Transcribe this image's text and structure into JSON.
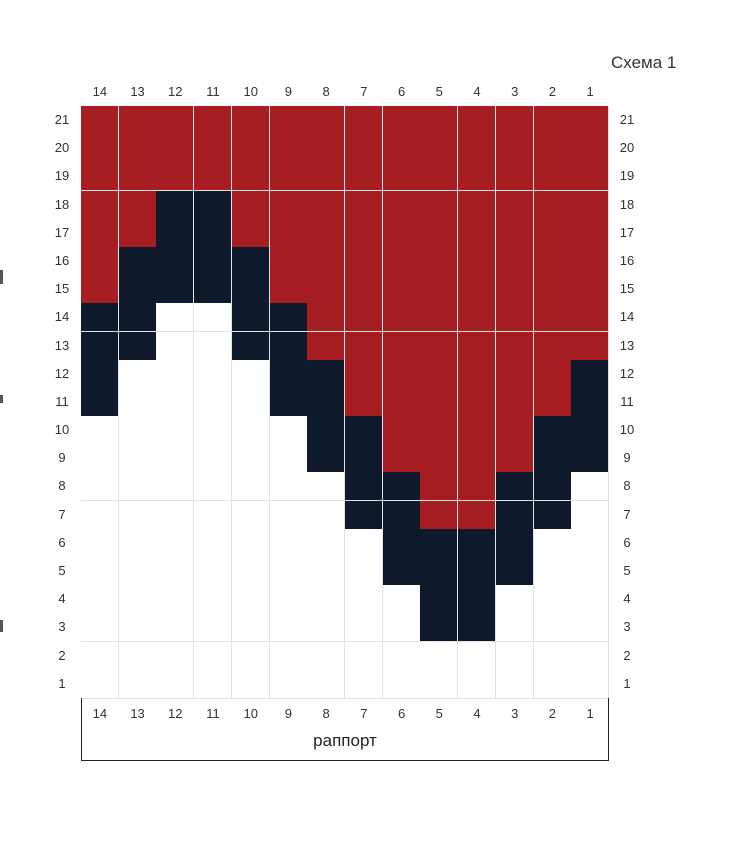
{
  "title": "Схема 1",
  "bottom_label": "раппорт",
  "column_labels": [
    "14",
    "13",
    "12",
    "11",
    "10",
    "9",
    "8",
    "7",
    "6",
    "5",
    "4",
    "3",
    "2",
    "1"
  ],
  "row_labels": [
    "21",
    "20",
    "19",
    "18",
    "17",
    "16",
    "15",
    "14",
    "13",
    "12",
    "11",
    "10",
    "9",
    "8",
    "7",
    "6",
    "5",
    "4",
    "3",
    "2",
    "1"
  ],
  "colors": {
    "R": "#a61e22",
    "B": "#0e1a2b",
    "W": "#ffffff",
    "grid_line": "#dfe3e8"
  },
  "legend_codes": {
    "R": "red",
    "B": "dark navy",
    "W": "white"
  },
  "pattern_rows_top_to_bottom": [
    "RRRRRRRRRRRRRR",
    "RRRRRRRRRRRRRR",
    "RRRRRRRRRRRRRR",
    "RRBBRRRRRRRRRR",
    "RRBBRRRRRRRRRR",
    "RBBBBRRRRRRRRR",
    "RBBBBRRRRRRRRR",
    "BBWWBBRRRRRRRR",
    "BBWWBBRRRRRRRR",
    "BWWWWBBRRRRRRB",
    "BWWWWBBRRRRRRB",
    "WWWWWWBBRRRRBB",
    "WWWWWWBBRRRRBB",
    "WWWWWWWBBRRBBW",
    "WWWWWWWBBRRBBW",
    "WWWWWWWWBBBBWW",
    "WWWWWWWWBBBBWW",
    "WWWWWWWWWBBWWW",
    "WWWWWWWWWBBWWW",
    "WWWWWWWWWWWWWW",
    "WWWWWWWWWWWWWW"
  ]
}
